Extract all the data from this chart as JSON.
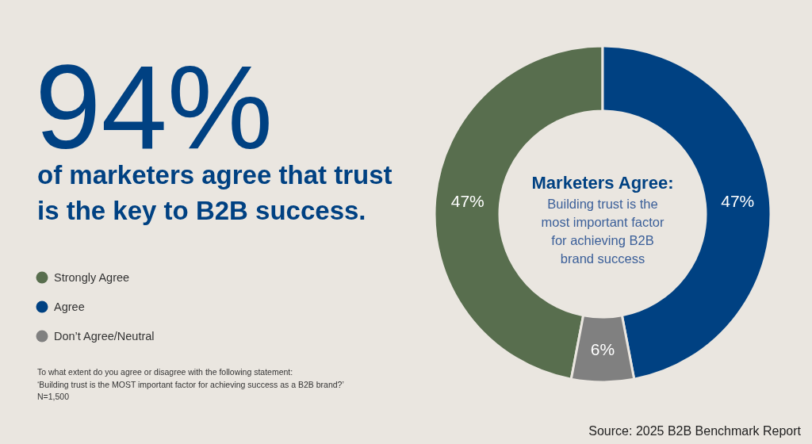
{
  "chart_data": {
    "type": "donut",
    "title": "94%",
    "subtitle": "of marketers agree that trust\nis the key to B2B success.",
    "categories": [
      "Strongly Agree",
      "Agree",
      "Don’t Agree/Neutral"
    ],
    "values": [
      47,
      47,
      6
    ],
    "colors": [
      "#586e4e",
      "#004182",
      "#808080"
    ],
    "value_labels": [
      "47%",
      "47%",
      "6%"
    ],
    "legend": "left",
    "annotations": [
      "Marketers Agree:",
      "Building trust is the\nmost important factor\nfor achieving B2B\nbrand success",
      "To what extent do you agree or disagree with the following statement:\n‘Building trust is the MOST important factor for achieving success as a B2B brand?’",
      "N=1,500",
      "Source: 2025 B2B Benchmark Report"
    ]
  }
}
